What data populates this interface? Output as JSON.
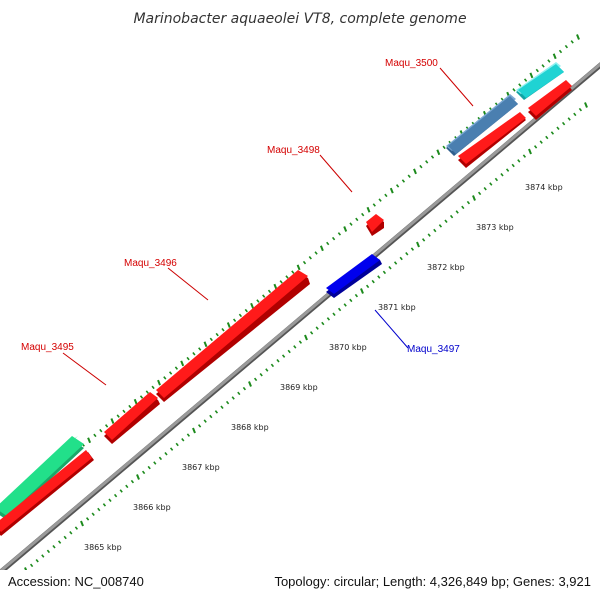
{
  "title": "Marinobacter aquaeolei VT8, complete genome",
  "accession": "Accession: NC_008740",
  "topology": "Topology: circular; Length: 4,326,849 bp; Genes: 3,921",
  "colors": {
    "backbone": "#8a8a8a",
    "tick": "#1c8a1c",
    "gene_forward": "#ff0000",
    "gene_reverse": "#0000ee",
    "feature_blue": "#4a7fb0",
    "feature_cyan": "#1fd3d3",
    "feature_green": "#22e08a",
    "label_forward": "#d40000",
    "label_reverse": "#0000cc"
  },
  "kbp_ticks": [
    {
      "label": "3865 kbp"
    },
    {
      "label": "3866 kbp"
    },
    {
      "label": "3867 kbp"
    },
    {
      "label": "3868 kbp"
    },
    {
      "label": "3869 kbp"
    },
    {
      "label": "3870 kbp"
    },
    {
      "label": "3871 kbp"
    },
    {
      "label": "3872 kbp"
    },
    {
      "label": "3873 kbp"
    },
    {
      "label": "3874 kbp"
    }
  ],
  "genes": [
    {
      "name": "Maqu_3495",
      "strand": "forward"
    },
    {
      "name": "Maqu_3496",
      "strand": "forward"
    },
    {
      "name": "Maqu_3497",
      "strand": "reverse"
    },
    {
      "name": "Maqu_3498",
      "strand": "forward"
    },
    {
      "name": "Maqu_3500",
      "strand": "forward"
    }
  ]
}
